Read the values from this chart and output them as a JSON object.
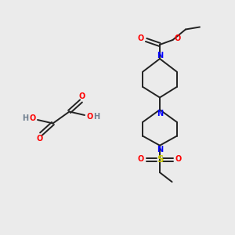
{
  "bg_color": "#ebebeb",
  "bond_color": "#222222",
  "N_color": "#0000ff",
  "O_color": "#ff0000",
  "S_color": "#cccc00",
  "H_color": "#708090",
  "font_size": 7.0,
  "bond_width": 1.4,
  "figsize": [
    3.0,
    3.0
  ],
  "dpi": 100,
  "xlim": [
    0,
    10
  ],
  "ylim": [
    0,
    10
  ]
}
